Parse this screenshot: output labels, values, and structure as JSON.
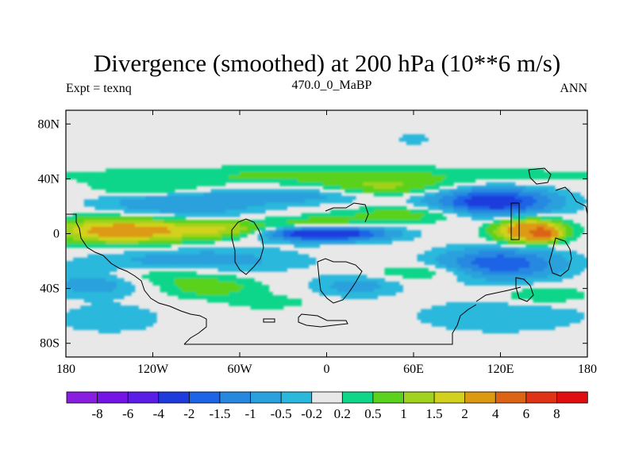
{
  "chart_data": {
    "type": "heatmap",
    "title": "Divergence (smoothed) at 200 hPa (10**6 m/s)",
    "subtitle_left": "Expt = texnq",
    "subtitle_center": "470.0_0_MaBP",
    "subtitle_right": "ANN",
    "x_range": [
      -180,
      180
    ],
    "y_range": [
      -90,
      90
    ],
    "x_ticks": [
      {
        "value": -180,
        "label": "180"
      },
      {
        "value": -120,
        "label": "120W"
      },
      {
        "value": -60,
        "label": "60W"
      },
      {
        "value": 0,
        "label": "0"
      },
      {
        "value": 60,
        "label": "60E"
      },
      {
        "value": 120,
        "label": "120E"
      },
      {
        "value": 180,
        "label": "180"
      }
    ],
    "y_ticks": [
      {
        "value": 80,
        "label": "80N"
      },
      {
        "value": 40,
        "label": "40N"
      },
      {
        "value": 0,
        "label": "0"
      },
      {
        "value": -40,
        "label": "40S"
      },
      {
        "value": -80,
        "label": "80S"
      }
    ],
    "contour_levels": [
      "-8",
      "-6",
      "-4",
      "-2",
      "-1.5",
      "-1",
      "-0.5",
      "-0.2",
      "0.2",
      "0.5",
      "1",
      "1.5",
      "2",
      "4",
      "6",
      "8"
    ],
    "level_values": [
      -8,
      -6,
      -4,
      -2,
      -1.5,
      -1,
      -0.5,
      -0.2,
      0.2,
      0.5,
      1,
      1.5,
      2,
      4,
      6,
      8
    ],
    "colors": [
      "#8a1ee0",
      "#7414e6",
      "#5a1ee6",
      "#1e3cdc",
      "#1e64e6",
      "#2888e0",
      "#2aa0dc",
      "#2ab8dc",
      "#e8e8e8",
      "#10d68a",
      "#5ad21e",
      "#a0d21e",
      "#d2d21e",
      "#dc9a12",
      "#dc6414",
      "#e03214",
      "#e00e0e"
    ],
    "blobs": [
      {
        "lon": -140,
        "lat": 2,
        "rlon": 48,
        "rlat": 9,
        "v": 2.6
      },
      {
        "lon": -62,
        "lat": 3,
        "rlon": 38,
        "rlat": 6,
        "v": 1.8
      },
      {
        "lon": -10,
        "lat": 6,
        "rlon": 35,
        "rlat": 6,
        "v": 1.2
      },
      {
        "lon": 140,
        "lat": 2,
        "rlon": 22,
        "rlat": 8,
        "v": 3.5
      },
      {
        "lon": 150,
        "lat": 0,
        "rlon": 8,
        "rlat": 4,
        "v": 3.0
      },
      {
        "lon": 0,
        "lat": 0,
        "rlon": 40,
        "rlat": 5,
        "v": -3.0
      },
      {
        "lon": -30,
        "lat": 3,
        "rlon": 40,
        "rlat": 6,
        "v": -1.2
      },
      {
        "lon": 115,
        "lat": 23,
        "rlon": 40,
        "rlat": 10,
        "v": -2.6
      },
      {
        "lon": -100,
        "lat": 22,
        "rlon": 55,
        "rlat": 10,
        "v": -1.0
      },
      {
        "lon": -20,
        "lat": 28,
        "rlon": 50,
        "rlat": 6,
        "v": -0.7
      },
      {
        "lon": 120,
        "lat": -22,
        "rlon": 40,
        "rlat": 11,
        "v": -2.0
      },
      {
        "lon": -90,
        "lat": -20,
        "rlon": 70,
        "rlat": 10,
        "v": -0.8
      },
      {
        "lon": -160,
        "lat": -35,
        "rlon": 35,
        "rlat": 10,
        "v": -0.9
      },
      {
        "lon": 20,
        "lat": -38,
        "rlon": 30,
        "rlat": 8,
        "v": -0.7
      },
      {
        "lon": 0,
        "lat": 42,
        "rlon": 180,
        "rlat": 7,
        "v": 0.6
      },
      {
        "lon": 40,
        "lat": 34,
        "rlon": 40,
        "rlat": 6,
        "v": 1.0
      },
      {
        "lon": 60,
        "lat": 14,
        "rlon": 50,
        "rlat": 6,
        "v": 0.8
      },
      {
        "lon": -120,
        "lat": 32,
        "rlon": 40,
        "rlat": 5,
        "v": 0.7
      },
      {
        "lon": -120,
        "lat": -30,
        "rlon": 60,
        "rlat": 7,
        "v": 0.7
      },
      {
        "lon": 70,
        "lat": -28,
        "rlon": 40,
        "rlat": 6,
        "v": 0.6
      },
      {
        "lon": -80,
        "lat": -40,
        "rlon": 35,
        "rlat": 7,
        "v": 0.7
      },
      {
        "lon": 150,
        "lat": -45,
        "rlon": 30,
        "rlat": 6,
        "v": 0.6
      },
      {
        "lon": -150,
        "lat": -62,
        "rlon": 35,
        "rlat": 10,
        "v": -0.5
      },
      {
        "lon": 120,
        "lat": -60,
        "rlon": 60,
        "rlat": 12,
        "v": -0.5
      },
      {
        "lon": -40,
        "lat": -50,
        "rlon": 30,
        "rlat": 5,
        "v": 0.4
      },
      {
        "lon": 60,
        "lat": 69,
        "rlon": 12,
        "rlat": 4,
        "v": -0.4
      }
    ]
  }
}
